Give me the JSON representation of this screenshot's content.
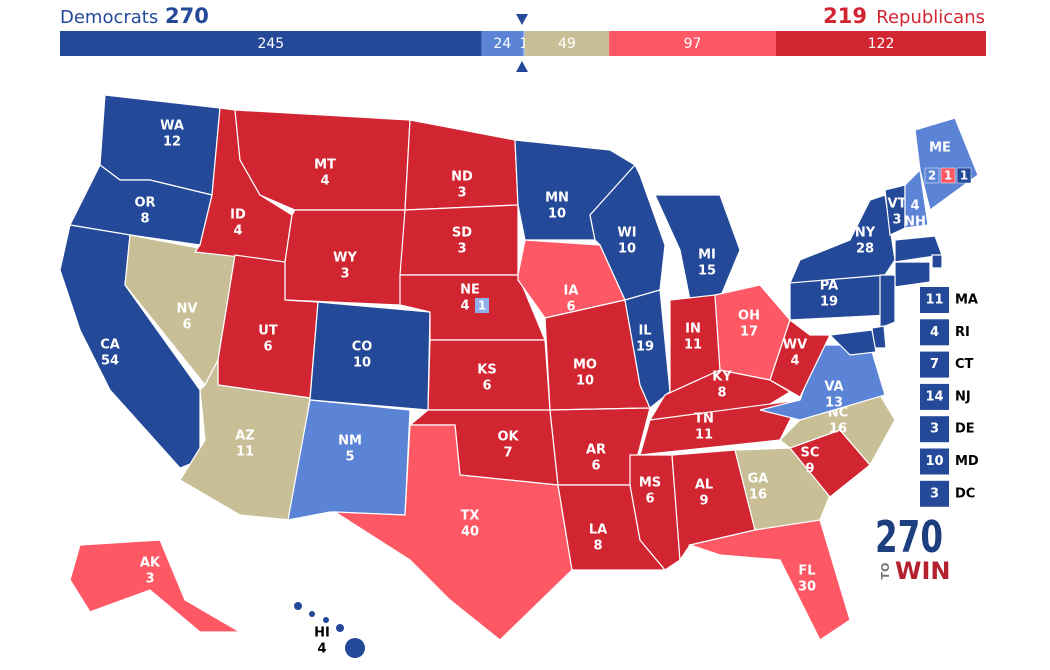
{
  "header": {
    "dem_label": "Democrats",
    "dem_total": 270,
    "rep_total": 219,
    "rep_label": "Republicans"
  },
  "bar": [
    {
      "value": 245,
      "color": "#244999"
    },
    {
      "value": 24,
      "color": "#5b83d6"
    },
    {
      "value": 1,
      "color": "#8fb0ea"
    },
    {
      "value": 49,
      "color": "#c9bf96"
    },
    {
      "value": 97,
      "color": "#ff5865"
    },
    {
      "value": 122,
      "color": "#d22532"
    }
  ],
  "states": [
    {
      "abbr": "WA",
      "votes": 12,
      "color": "#244999"
    },
    {
      "abbr": "OR",
      "votes": 8,
      "color": "#244999"
    },
    {
      "abbr": "CA",
      "votes": 54,
      "color": "#244999"
    },
    {
      "abbr": "NV",
      "votes": 6,
      "color": "#c9bf96"
    },
    {
      "abbr": "ID",
      "votes": 4,
      "color": "#d22532"
    },
    {
      "abbr": "MT",
      "votes": 4,
      "color": "#d22532"
    },
    {
      "abbr": "WY",
      "votes": 3,
      "color": "#d22532"
    },
    {
      "abbr": "UT",
      "votes": 6,
      "color": "#d22532"
    },
    {
      "abbr": "AZ",
      "votes": 11,
      "color": "#c9bf96"
    },
    {
      "abbr": "CO",
      "votes": 10,
      "color": "#244999"
    },
    {
      "abbr": "NM",
      "votes": 5,
      "color": "#5b83d6"
    },
    {
      "abbr": "ND",
      "votes": 3,
      "color": "#d22532"
    },
    {
      "abbr": "SD",
      "votes": 3,
      "color": "#d22532"
    },
    {
      "abbr": "NE",
      "votes": 4,
      "color": "#d22532",
      "districts": [
        {
          "votes": 1,
          "color": "#8fb0ea"
        }
      ]
    },
    {
      "abbr": "KS",
      "votes": 6,
      "color": "#d22532"
    },
    {
      "abbr": "OK",
      "votes": 7,
      "color": "#d22532"
    },
    {
      "abbr": "TX",
      "votes": 40,
      "color": "#ff5865"
    },
    {
      "abbr": "MN",
      "votes": 10,
      "color": "#244999"
    },
    {
      "abbr": "IA",
      "votes": 6,
      "color": "#ff5865"
    },
    {
      "abbr": "MO",
      "votes": 10,
      "color": "#d22532"
    },
    {
      "abbr": "AR",
      "votes": 6,
      "color": "#d22532"
    },
    {
      "abbr": "LA",
      "votes": 8,
      "color": "#d22532"
    },
    {
      "abbr": "WI",
      "votes": 10,
      "color": "#244999"
    },
    {
      "abbr": "IL",
      "votes": 19,
      "color": "#244999"
    },
    {
      "abbr": "MI",
      "votes": 15,
      "color": "#244999"
    },
    {
      "abbr": "IN",
      "votes": 11,
      "color": "#d22532"
    },
    {
      "abbr": "OH",
      "votes": 17,
      "color": "#ff5865"
    },
    {
      "abbr": "KY",
      "votes": 8,
      "color": "#d22532"
    },
    {
      "abbr": "TN",
      "votes": 11,
      "color": "#d22532"
    },
    {
      "abbr": "MS",
      "votes": 6,
      "color": "#d22532"
    },
    {
      "abbr": "AL",
      "votes": 9,
      "color": "#d22532"
    },
    {
      "abbr": "GA",
      "votes": 16,
      "color": "#c9bf96"
    },
    {
      "abbr": "FL",
      "votes": 30,
      "color": "#ff5865"
    },
    {
      "abbr": "SC",
      "votes": 9,
      "color": "#d22532"
    },
    {
      "abbr": "NC",
      "votes": 16,
      "color": "#c9bf96"
    },
    {
      "abbr": "VA",
      "votes": 13,
      "color": "#5b83d6"
    },
    {
      "abbr": "WV",
      "votes": 4,
      "color": "#d22532"
    },
    {
      "abbr": "PA",
      "votes": 19,
      "color": "#244999"
    },
    {
      "abbr": "NY",
      "votes": 28,
      "color": "#244999"
    },
    {
      "abbr": "VT",
      "votes": 3,
      "color": "#244999"
    },
    {
      "abbr": "NH",
      "votes": 4,
      "color": "#5b83d6"
    },
    {
      "abbr": "ME",
      "votes": 2,
      "color": "#5b83d6",
      "districts": [
        {
          "votes": 1,
          "color": "#ff5865"
        },
        {
          "votes": 1,
          "color": "#244999"
        }
      ]
    },
    {
      "abbr": "MA",
      "votes": 11,
      "color": "#244999"
    },
    {
      "abbr": "RI",
      "votes": 4,
      "color": "#244999"
    },
    {
      "abbr": "CT",
      "votes": 7,
      "color": "#244999"
    },
    {
      "abbr": "NJ",
      "votes": 14,
      "color": "#244999"
    },
    {
      "abbr": "DE",
      "votes": 3,
      "color": "#244999"
    },
    {
      "abbr": "MD",
      "votes": 10,
      "color": "#244999"
    },
    {
      "abbr": "DC",
      "votes": 3,
      "color": "#244999"
    },
    {
      "abbr": "AK",
      "votes": 3,
      "color": "#ff5865"
    },
    {
      "abbr": "HI",
      "votes": 4,
      "color": "#244999"
    }
  ],
  "logo": {
    "number": "270",
    "to": "TO",
    "win": "WIN"
  }
}
